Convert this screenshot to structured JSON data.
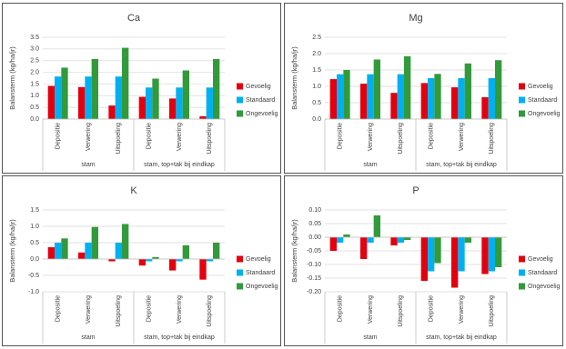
{
  "chart_data": [
    {
      "type": "bar",
      "title": "Ca",
      "y_label": "Balansterm (kg/ha/jr)",
      "categories": [
        "Depositie",
        "Verwering",
        "Uitspoeling",
        "Depositie",
        "Verwering",
        "Uitspoeling"
      ],
      "category_groups": [
        "stam",
        "stam, top+tak bij eindkap"
      ],
      "series": [
        {
          "name": "Gevoelig",
          "color": "#e3000f",
          "values": [
            1.42,
            1.37,
            0.58,
            0.95,
            0.88,
            0.12
          ]
        },
        {
          "name": "Standaard",
          "color": "#00b0f0",
          "values": [
            1.82,
            1.82,
            1.82,
            1.35,
            1.35,
            1.35
          ]
        },
        {
          "name": "Ongevoelig",
          "color": "#339a3c",
          "values": [
            2.2,
            2.57,
            3.05,
            1.73,
            2.08,
            2.57
          ]
        }
      ],
      "ylim": [
        0,
        3.5
      ],
      "yticks": [
        {
          "value": 0,
          "label": "0.0"
        },
        0.5,
        {
          "value": 1,
          "label": "1.0"
        },
        1.5,
        {
          "value": 2,
          "label": "2.0"
        },
        2.5,
        {
          "value": 3,
          "label": "3.0"
        },
        3.5
      ],
      "grid": true,
      "legend": "right"
    },
    {
      "type": "bar",
      "title": "Mg",
      "y_label": "Balansterm (kg/ha/jr)",
      "categories": [
        "Depositie",
        "Verwering",
        "Uitspoeling",
        "Depositie",
        "Verwering",
        "Uitspoeling"
      ],
      "category_groups": [
        "stam",
        "stam, top+tak bij eindkap"
      ],
      "series": [
        {
          "name": "Gevoelig",
          "color": "#e3000f",
          "values": [
            1.22,
            1.08,
            0.8,
            1.1,
            0.97,
            0.67
          ]
        },
        {
          "name": "Standaard",
          "color": "#00b0f0",
          "values": [
            1.37,
            1.37,
            1.37,
            1.25,
            1.25,
            1.25
          ]
        },
        {
          "name": "Ongevoelig",
          "color": "#339a3c",
          "values": [
            1.5,
            1.82,
            1.92,
            1.38,
            1.7,
            1.8
          ]
        }
      ],
      "ylim": [
        0,
        2.5
      ],
      "yticks": [
        {
          "value": 0,
          "label": "0.0"
        },
        0.5,
        {
          "value": 1,
          "label": "1.0"
        },
        1.5,
        {
          "value": 2,
          "label": "2.0"
        },
        2.5
      ],
      "grid": true,
      "legend": "right"
    },
    {
      "type": "bar",
      "title": "K",
      "y_label": "Balansterm (kg/ha/jr)",
      "categories": [
        "Depositie",
        "Verwering",
        "Uitspoeling",
        "Depositie",
        "Verwering",
        "Uitspoeling"
      ],
      "category_groups": [
        "stam",
        "stam, top+tak bij eindkap"
      ],
      "series": [
        {
          "name": "Gevoelig",
          "color": "#e3000f",
          "values": [
            0.36,
            0.2,
            -0.07,
            -0.2,
            -0.35,
            -0.63
          ]
        },
        {
          "name": "Standaard",
          "color": "#00b0f0",
          "values": [
            0.5,
            0.5,
            0.5,
            -0.07,
            -0.07,
            -0.07
          ]
        },
        {
          "name": "Ongevoelig",
          "color": "#339a3c",
          "values": [
            0.63,
            0.98,
            1.07,
            0.06,
            0.42,
            0.5
          ]
        }
      ],
      "ylim": [
        -1,
        1.5
      ],
      "yticks": [
        {
          "value": -1,
          "label": "-1.0"
        },
        -0.5,
        {
          "value": 0,
          "label": "0.0"
        },
        0.5,
        {
          "value": 1,
          "label": "1.0"
        },
        1.5
      ],
      "grid": true,
      "legend": "right"
    },
    {
      "type": "bar",
      "title": "P",
      "y_label": "Balansterm (kg/ha/jr)",
      "categories": [
        "Depositie",
        "Verwering",
        "Uitspoeling",
        "Depositie",
        "Verwering",
        "Uitspoeling"
      ],
      "category_groups": [
        "stam",
        "stam, top+tak bij eindkap"
      ],
      "series": [
        {
          "name": "Gevoelig",
          "color": "#e3000f",
          "values": [
            -0.05,
            -0.08,
            -0.03,
            -0.16,
            -0.185,
            -0.135
          ]
        },
        {
          "name": "Standaard",
          "color": "#00b0f0",
          "values": [
            -0.02,
            -0.02,
            -0.02,
            -0.125,
            -0.125,
            -0.125
          ]
        },
        {
          "name": "Ongevoelig",
          "color": "#339a3c",
          "values": [
            0.01,
            0.08,
            -0.01,
            -0.095,
            -0.02,
            -0.11
          ]
        }
      ],
      "ylim": [
        -0.2,
        0.1
      ],
      "yticks": [
        {
          "value": -0.2,
          "label": "-0.20"
        },
        -0.15,
        {
          "value": -0.1,
          "label": "-0.10"
        },
        -0.05,
        {
          "value": 0,
          "label": "0.00"
        },
        0.05,
        {
          "value": 0.1,
          "label": "0.10"
        }
      ],
      "grid": true,
      "legend": "right"
    }
  ]
}
